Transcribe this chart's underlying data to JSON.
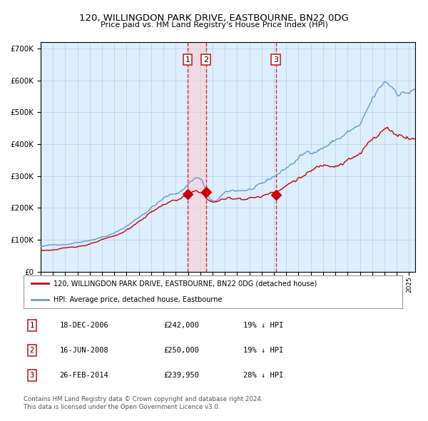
{
  "title": "120, WILLINGDON PARK DRIVE, EASTBOURNE, BN22 0DG",
  "subtitle": "Price paid vs. HM Land Registry's House Price Index (HPI)",
  "legend_red": "120, WILLINGDON PARK DRIVE, EASTBOURNE, BN22 0DG (detached house)",
  "legend_blue": "HPI: Average price, detached house, Eastbourne",
  "footnote1": "Contains HM Land Registry data © Crown copyright and database right 2024.",
  "footnote2": "This data is licensed under the Open Government Licence v3.0.",
  "transactions": [
    {
      "label": "1",
      "date": "18-DEC-2006",
      "price": "£242,000",
      "pct": "19% ↓ HPI",
      "x_year": 2006.96,
      "y_val": 242000
    },
    {
      "label": "2",
      "date": "16-JUN-2008",
      "price": "£250,000",
      "pct": "19% ↓ HPI",
      "x_year": 2008.46,
      "y_val": 250000
    },
    {
      "label": "3",
      "date": "26-FEB-2014",
      "price": "£239,950",
      "pct": "28% ↓ HPI",
      "x_year": 2014.15,
      "y_val": 239950
    }
  ],
  "ylim": [
    0,
    720000
  ],
  "xlim_start": 1995.0,
  "xlim_end": 2025.5,
  "red_color": "#cc0000",
  "blue_color": "#6699cc",
  "bg_color": "#ddeeff",
  "plot_bg": "#ffffff",
  "vline_color": "#cc3333",
  "shade_color": "#ffcccc"
}
